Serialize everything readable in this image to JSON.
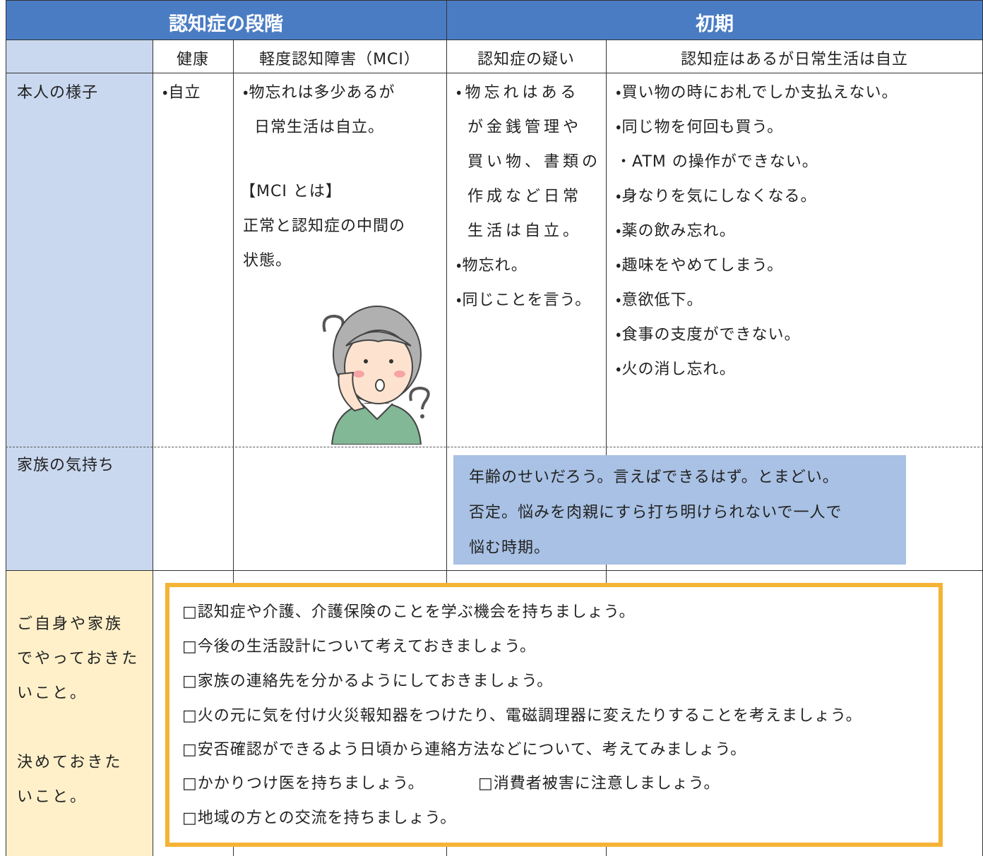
{
  "header": {
    "stage": "認知症の段階",
    "phase": "初期"
  },
  "columns": [
    "健康",
    "軽度認知障害（MCI）",
    "認知症の疑い",
    "認知症はあるが日常生活は自立"
  ],
  "rows": {
    "condition": {
      "label": "本人の様子",
      "healthy": [
        "・自立"
      ],
      "mci": {
        "lines": [
          "・物忘れは多少あるが",
          "日常生活は自立。"
        ],
        "note_title": "【MCI とは】",
        "note": [
          "正常と認知症の中間の",
          "状態。"
        ]
      },
      "suspected": [
        "・物忘れはある",
        "が金銭管理や",
        "買い物、書類の",
        "作成など日常",
        "生活は自立。",
        "・物忘れ。",
        "・同じことを言う。"
      ],
      "independent": [
        "・買い物の時にお札でしか支払えない。",
        "・同じ物を何回も買う。",
        "・ATM の操作ができない。",
        "・身なりを気にしなくなる。",
        "・薬の飲み忘れ。",
        "・趣味をやめてしまう。",
        "・意欲低下。",
        "・食事の支度ができない。",
        "・火の消し忘れ。"
      ]
    },
    "family": {
      "label": "家族の気持ち",
      "note": [
        "年齢のせいだろう。言えばできるはず。とまどい。",
        "否定。悩みを肉親にすら打ち明けられないで一人で",
        "悩む時期。"
      ]
    },
    "todo": {
      "label": [
        "ご自身や家族",
        "でやっておきた",
        "いこと。"
      ],
      "label2": [
        "決めておきた",
        "いこと。"
      ],
      "items": [
        "□認知症や介護、介護保険のことを学ぶ機会を持ちましょう。",
        "□今後の生活設計について考えておきましょう。",
        "□家族の連絡先を分かるようにしておきましょう。",
        "□火の元に気を付け火災報知器をつけたり、電磁調理器に変えたりすることを考えましょう。",
        "□安否確認ができるよう日頃から連絡方法などについて、考えてみましょう。",
        "□かかりつけ医を持ちましょう。",
        "□消費者被害に注意しましょう。",
        "□地域の方との交流を持ちましょう。"
      ]
    }
  }
}
